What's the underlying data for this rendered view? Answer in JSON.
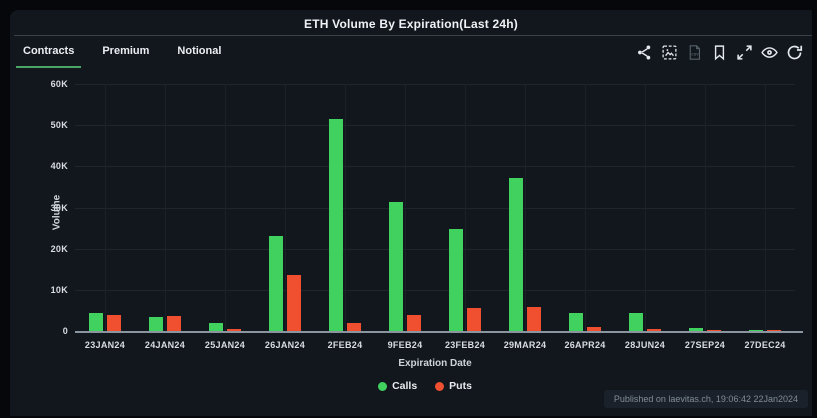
{
  "header": {
    "title": "ETH Volume By Expiration(Last 24h)",
    "tabs": [
      {
        "label": "Contracts",
        "active": true
      },
      {
        "label": "Premium",
        "active": false
      },
      {
        "label": "Notional",
        "active": false
      }
    ]
  },
  "chart_data": {
    "type": "bar",
    "title": "ETH Volume By Expiration(Last 24h)",
    "xlabel": "Expiration Date",
    "ylabel": "Volume",
    "ylim": [
      0,
      60000
    ],
    "yticks": [
      0,
      10000,
      20000,
      30000,
      40000,
      50000,
      60000
    ],
    "grid": true,
    "legend_position": "bottom",
    "categories": [
      "23JAN24",
      "24JAN24",
      "25JAN24",
      "26JAN24",
      "2FEB24",
      "9FEB24",
      "23FEB24",
      "29MAR24",
      "26APR24",
      "28JUN24",
      "27SEP24",
      "27DEC24"
    ],
    "series": [
      {
        "name": "Calls",
        "color": "#41d15f",
        "values": [
          4500,
          3300,
          2000,
          23200,
          51500,
          31400,
          24800,
          37200,
          4400,
          4300,
          700,
          300
        ]
      },
      {
        "name": "Puts",
        "color": "#f0502f",
        "values": [
          3900,
          3600,
          400,
          13700,
          2000,
          4000,
          5500,
          5900,
          900,
          600,
          250,
          300
        ]
      }
    ]
  },
  "footer": {
    "published": "Published on laevitas.ch, 19:06:42 22Jan2024"
  }
}
